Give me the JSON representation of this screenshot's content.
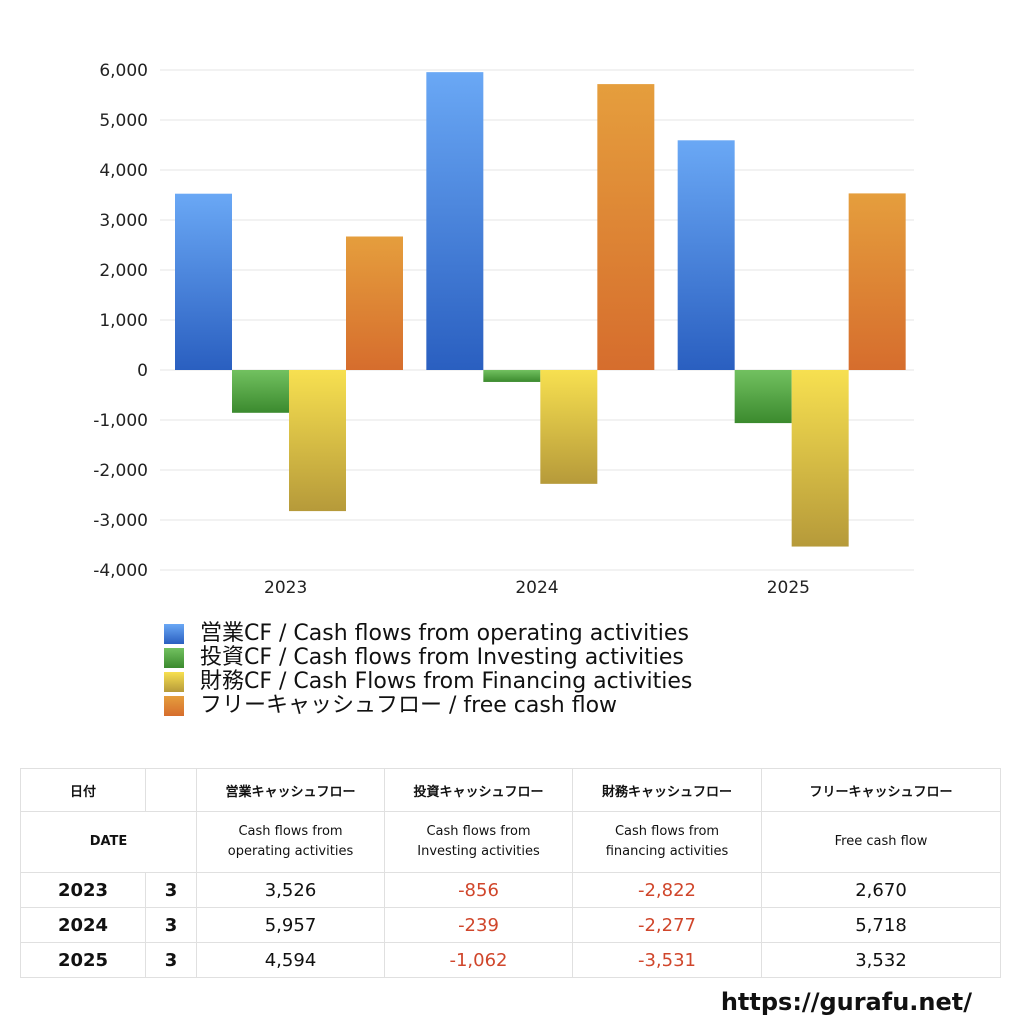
{
  "chart_data": {
    "type": "bar",
    "categories": [
      "2023",
      "2024",
      "2025"
    ],
    "series": [
      {
        "name": "営業CF / Cash flows from operating activities",
        "values": [
          3526,
          5957,
          4594
        ],
        "color": "#3f7fdb"
      },
      {
        "name": "投資CF / Cash flows from Investing activities",
        "values": [
          -856,
          -239,
          -1062
        ],
        "color": "#4b9c3a"
      },
      {
        "name": "財務CF / Cash Flows from Financing activities",
        "values": [
          -2822,
          -2277,
          -3531
        ],
        "color": "#e6cf45"
      },
      {
        "name": "フリーキャッシュフロー / free cash flow",
        "values": [
          2670,
          5718,
          3532
        ],
        "color": "#e0852f"
      }
    ],
    "yticks": [
      "6,000",
      "5,000",
      "4,000",
      "3,000",
      "2,000",
      "1,000",
      "0",
      "-1,000",
      "-2,000",
      "-3,000",
      "-4,000"
    ],
    "ylim": [
      -4000,
      6000
    ],
    "grid": true,
    "legend_position": "bottom-left"
  },
  "table": {
    "header1": [
      "日付",
      "",
      "営業キャッシュフロー",
      "投資キャッシュフロー",
      "財務キャッシュフロー",
      "フリーキャッシュフロー"
    ],
    "header2": {
      "date": "DATE",
      "op_line1": "Cash flows from",
      "op_line2": "operating activities",
      "inv_line1": "Cash flows from",
      "inv_line2": "Investing activities",
      "fin_line1": "Cash flows from",
      "fin_line2": "financing activities",
      "free": "Free cash flow"
    },
    "rows": [
      {
        "year": "2023",
        "month": "3",
        "op": "3,526",
        "inv": "-856",
        "fin": "-2,822",
        "free": "2,670"
      },
      {
        "year": "2024",
        "month": "3",
        "op": "5,957",
        "inv": "-239",
        "fin": "-2,277",
        "free": "5,718"
      },
      {
        "year": "2025",
        "month": "3",
        "op": "4,594",
        "inv": "-1,062",
        "fin": "-3,531",
        "free": "3,532"
      }
    ]
  },
  "footer": {
    "url": "https://gurafu.net/"
  }
}
